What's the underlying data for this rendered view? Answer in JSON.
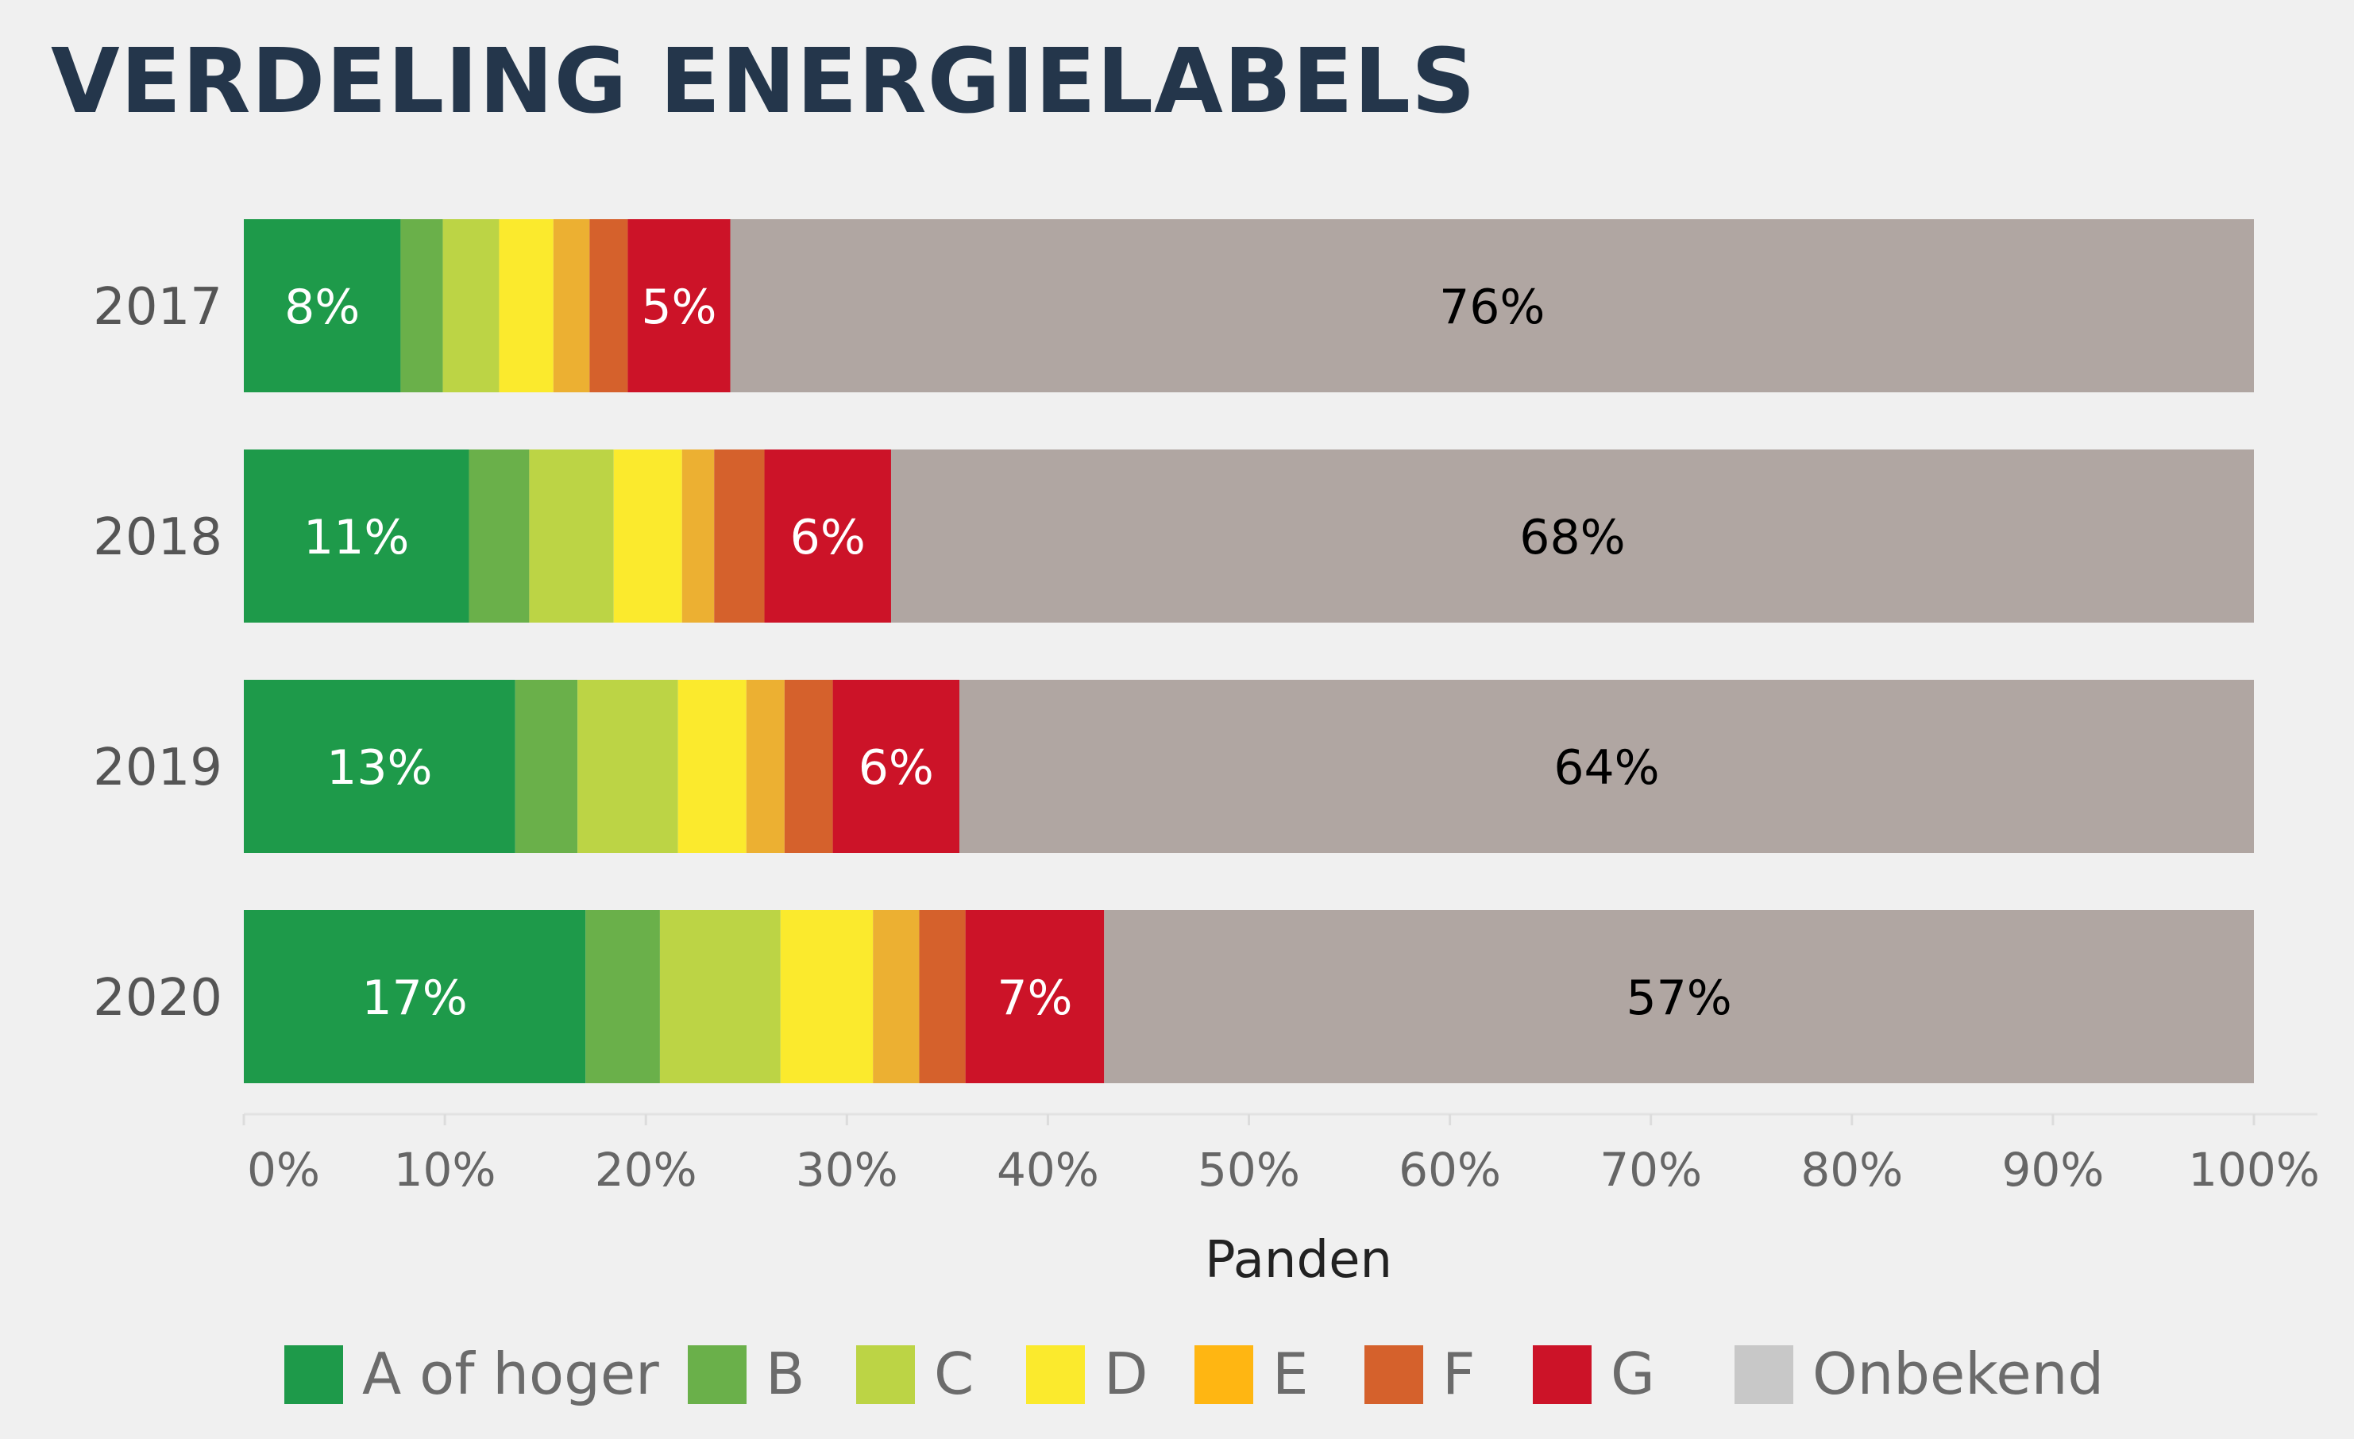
{
  "title": "VERDELING ENERGIELABELS",
  "chart_data": {
    "type": "bar",
    "orientation": "horizontal",
    "stacked": true,
    "title": "VERDELING ENERGIELABELS",
    "xlabel": "Panden",
    "ylabel": "",
    "xlim": [
      0,
      100
    ],
    "xticks": [
      "0%",
      "10%",
      "20%",
      "30%",
      "40%",
      "50%",
      "60%",
      "70%",
      "80%",
      "90%",
      "100%"
    ],
    "categories": [
      "2017",
      "2018",
      "2019",
      "2020"
    ],
    "series": [
      {
        "name": "A of hoger",
        "color": "#1e9a4a",
        "values": [
          7.8,
          11.2,
          13.5,
          17.0
        ]
      },
      {
        "name": "B",
        "color": "#6ab04a",
        "values": [
          2.1,
          3.0,
          3.1,
          3.7
        ]
      },
      {
        "name": "C",
        "color": "#bcd445",
        "values": [
          2.8,
          4.2,
          5.0,
          6.0
        ]
      },
      {
        "name": "D",
        "color": "#fbea2d",
        "values": [
          2.7,
          3.4,
          3.4,
          4.6
        ]
      },
      {
        "name": "E",
        "color": "#ecb032",
        "values": [
          1.8,
          1.6,
          1.9,
          2.3
        ]
      },
      {
        "name": "F",
        "color": "#d5612c",
        "values": [
          1.9,
          2.5,
          2.4,
          2.3
        ]
      },
      {
        "name": "G",
        "color": "#cc1328",
        "values": [
          5.1,
          6.3,
          6.3,
          6.9
        ]
      },
      {
        "name": "Onbekend",
        "color": "#b0a6a2",
        "values": [
          75.8,
          67.8,
          64.4,
          57.2
        ]
      }
    ],
    "data_labels": [
      {
        "category": "2017",
        "series": "A of hoger",
        "text": "8%",
        "color": "#ffffff"
      },
      {
        "category": "2017",
        "series": "G",
        "text": "5%",
        "color": "#ffffff"
      },
      {
        "category": "2017",
        "series": "Onbekend",
        "text": "76%",
        "color": "#000000"
      },
      {
        "category": "2018",
        "series": "A of hoger",
        "text": "11%",
        "color": "#ffffff"
      },
      {
        "category": "2018",
        "series": "G",
        "text": "6%",
        "color": "#ffffff"
      },
      {
        "category": "2018",
        "series": "Onbekend",
        "text": "68%",
        "color": "#000000"
      },
      {
        "category": "2019",
        "series": "A of hoger",
        "text": "13%",
        "color": "#ffffff"
      },
      {
        "category": "2019",
        "series": "G",
        "text": "6%",
        "color": "#ffffff"
      },
      {
        "category": "2019",
        "series": "Onbekend",
        "text": "64%",
        "color": "#000000"
      },
      {
        "category": "2020",
        "series": "A of hoger",
        "text": "17%",
        "color": "#ffffff"
      },
      {
        "category": "2020",
        "series": "G",
        "text": "7%",
        "color": "#ffffff"
      },
      {
        "category": "2020",
        "series": "Onbekend",
        "text": "57%",
        "color": "#000000"
      }
    ],
    "legend": {
      "placement": "bottom",
      "items": [
        {
          "label": "A of hoger",
          "color": "#1e9a4a"
        },
        {
          "label": "B",
          "color": "#6ab04a"
        },
        {
          "label": "C",
          "color": "#bcd445"
        },
        {
          "label": "D",
          "color": "#fbea2d"
        },
        {
          "label": "E",
          "color": "#ffb612"
        },
        {
          "label": "F",
          "color": "#d5612c"
        },
        {
          "label": "G",
          "color": "#cc1328"
        },
        {
          "label": "Onbekend",
          "color": "#c8c8c8"
        }
      ]
    },
    "grid": false
  }
}
